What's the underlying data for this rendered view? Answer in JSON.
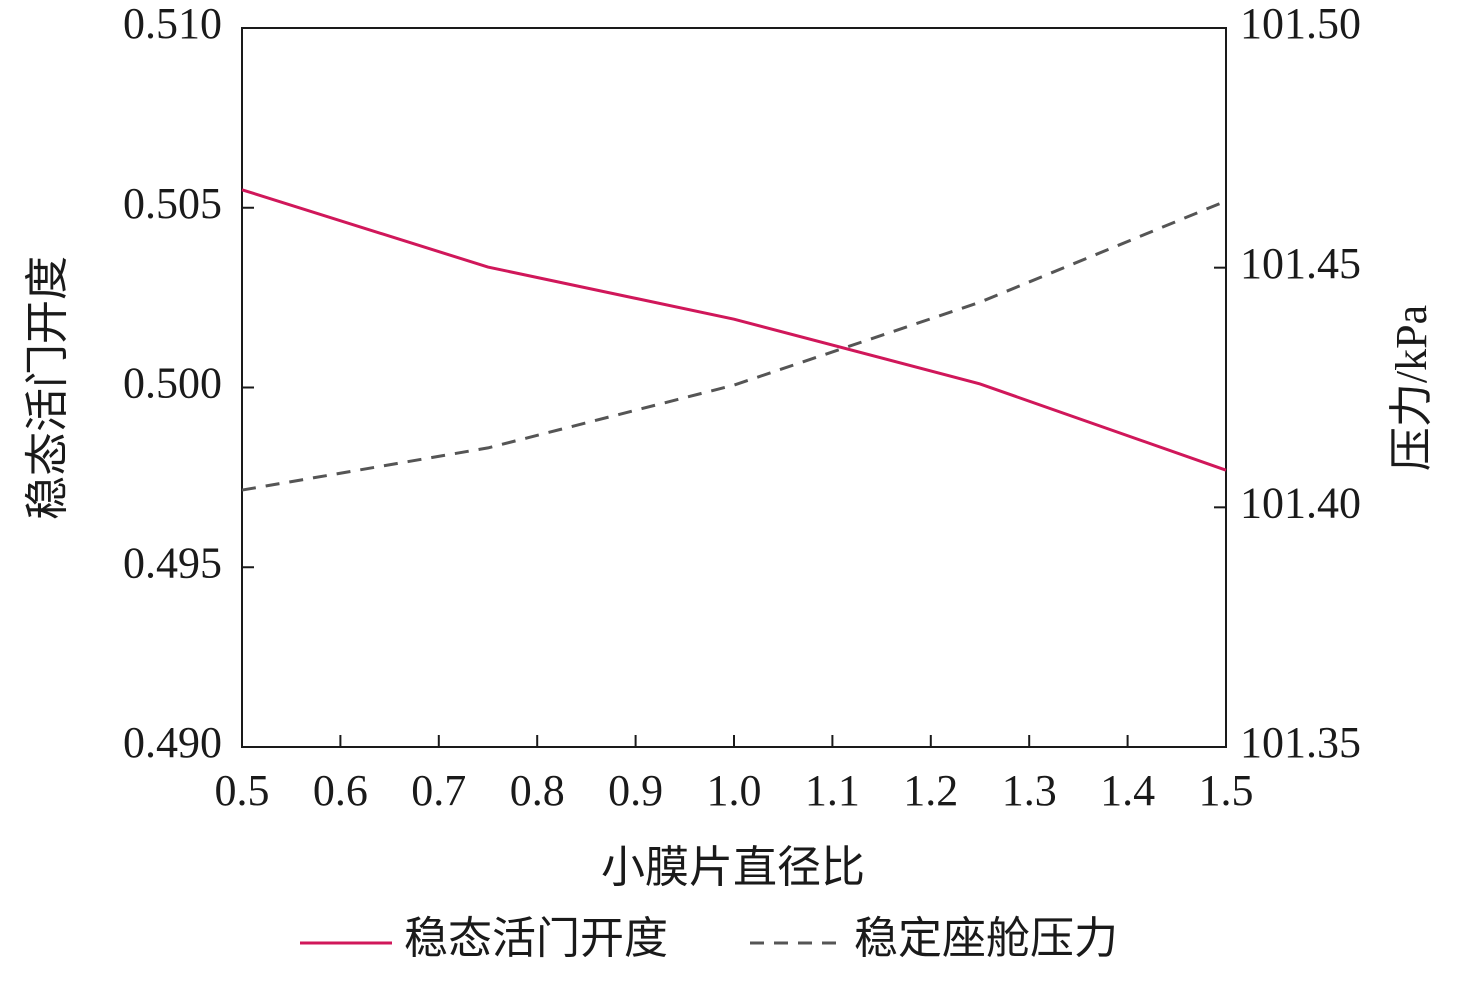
{
  "chart_data": {
    "type": "line",
    "x_label": "小膜片直径比",
    "y_label": "稳态活门开度",
    "y2_label": "压力/kPa",
    "x": [
      0.5,
      0.75,
      1.0,
      1.25,
      1.5
    ],
    "series": [
      {
        "name": "稳态活门开度",
        "color": "#d0175a",
        "line_style": "solid",
        "values": [
          0.5055,
          0.50335,
          0.5019,
          0.5001,
          0.4977
        ]
      },
      {
        "name": "稳定座舱压力",
        "color": "#555555",
        "line_style": "dashed",
        "axis": "y2",
        "values": [
          101.4036,
          101.4124,
          101.4255,
          101.4428,
          101.4639
        ]
      }
    ],
    "xlim": [
      0.5,
      1.5
    ],
    "xticks": [
      0.5,
      0.6,
      0.7,
      0.8,
      0.9,
      {
        "value": 1,
        "label": "1.0"
      },
      1.1,
      1.2,
      1.3,
      1.4,
      1.5
    ],
    "ylim": [
      0.49,
      0.51
    ],
    "yticks": [
      {
        "value": 0.49,
        "label": "0.490"
      },
      0.495,
      {
        "value": 0.5,
        "label": "0.500"
      },
      0.505,
      {
        "value": 0.51,
        "label": "0.510"
      }
    ],
    "y2lim": [
      101.35,
      101.5
    ],
    "y2ticks": [
      101.35,
      {
        "value": 101.4,
        "label": "101.40"
      },
      101.45,
      {
        "value": 101.5,
        "label": "101.50"
      }
    ],
    "legend": "bottom"
  }
}
